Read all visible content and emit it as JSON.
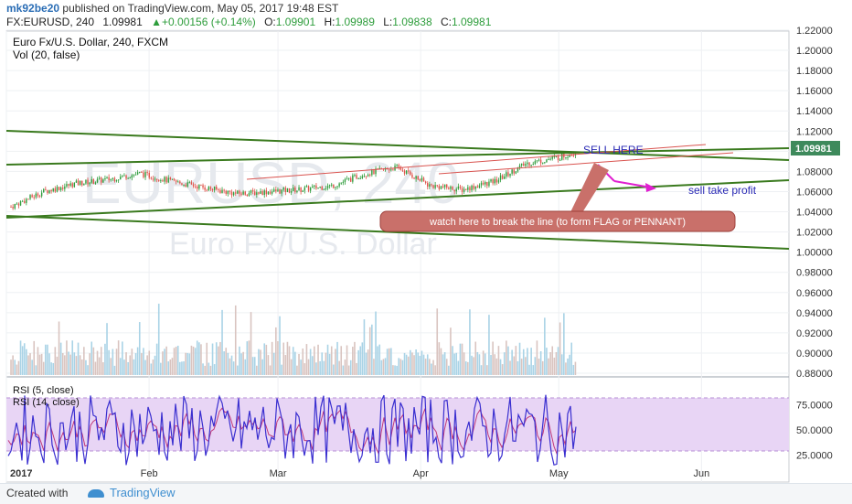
{
  "header": {
    "author": "mk92be20",
    "published": "published on TradingView.com, May 05, 2017 19:48 EST",
    "symbol": "FX:EURUSD, 240",
    "last": "1.09981",
    "change_arrow": "▲",
    "change": "+0.00156 (+0.14%)",
    "o_label": "O:",
    "o": "1.09901",
    "h_label": "H:",
    "h": "1.09989",
    "l_label": "L:",
    "l": "1.09838",
    "c_label": "C:",
    "c": "1.09981"
  },
  "watermark": {
    "symbol": "EURUSD, 240",
    "name": "Euro Fx/U.S. Dollar"
  },
  "footer": {
    "created": "Created with",
    "brand": "TradingView"
  },
  "colors": {
    "up": "#2e9d3c",
    "down": "#e0534a",
    "trendline": "#3a7a1e",
    "channel": "#d9534f",
    "rsi5": "#3a2fd0",
    "rsi14": "#c0397a",
    "rsi_band": "#e8d5f5",
    "arrow": "#e020d0",
    "note_bg": "#c9706a"
  },
  "chart_data": [
    {
      "type": "candlestick",
      "title": "Euro Fx/U.S. Dollar, 240, FXCM",
      "indicator": "Vol (20, false)",
      "x_ticks": [
        "2017",
        "Feb",
        "Mar",
        "Apr",
        "May",
        "Jun"
      ],
      "y_ticks": [
        "1.22000",
        "1.20000",
        "1.18000",
        "1.16000",
        "1.14000",
        "1.12000",
        "1.10000",
        "1.08000",
        "1.06000",
        "1.04000",
        "1.02000",
        "1.00000",
        "0.98000",
        "0.96000",
        "0.94000",
        "0.92000",
        "0.90000",
        "0.88000"
      ],
      "ylim": [
        0.87,
        1.225
      ],
      "last_price": "1.09981",
      "price_path": [
        {
          "date": "2017-01-02",
          "close": 1.045
        },
        {
          "date": "2017-01-09",
          "close": 1.06
        },
        {
          "date": "2017-01-16",
          "close": 1.068
        },
        {
          "date": "2017-01-23",
          "close": 1.072
        },
        {
          "date": "2017-01-30",
          "close": 1.078
        },
        {
          "date": "2017-02-06",
          "close": 1.07
        },
        {
          "date": "2017-02-13",
          "close": 1.064
        },
        {
          "date": "2017-02-20",
          "close": 1.058
        },
        {
          "date": "2017-02-27",
          "close": 1.06
        },
        {
          "date": "2017-03-06",
          "close": 1.062
        },
        {
          "date": "2017-03-13",
          "close": 1.066
        },
        {
          "date": "2017-03-20",
          "close": 1.078
        },
        {
          "date": "2017-03-27",
          "close": 1.084
        },
        {
          "date": "2017-04-03",
          "close": 1.066
        },
        {
          "date": "2017-04-10",
          "close": 1.062
        },
        {
          "date": "2017-04-17",
          "close": 1.07
        },
        {
          "date": "2017-04-24",
          "close": 1.088
        },
        {
          "date": "2017-05-01",
          "close": 1.094
        },
        {
          "date": "2017-05-05",
          "close": 1.0998
        }
      ],
      "annotations": [
        {
          "text": "SELL HERE",
          "color": "#2a2ab5"
        },
        {
          "text": "sell take profit",
          "color": "#2a2ab5"
        },
        {
          "text": "watch here to break the line (to form FLAG or PENNANT)",
          "color": "#ffffff"
        }
      ]
    },
    {
      "type": "line",
      "title": "RSI (5, close)",
      "series": [
        {
          "name": "RSI (5, close)"
        },
        {
          "name": "RSI (14, close)"
        }
      ],
      "y_ticks": [
        "75.0000",
        "50.0000",
        "25.0000"
      ],
      "ylim": [
        0,
        100
      ]
    }
  ]
}
